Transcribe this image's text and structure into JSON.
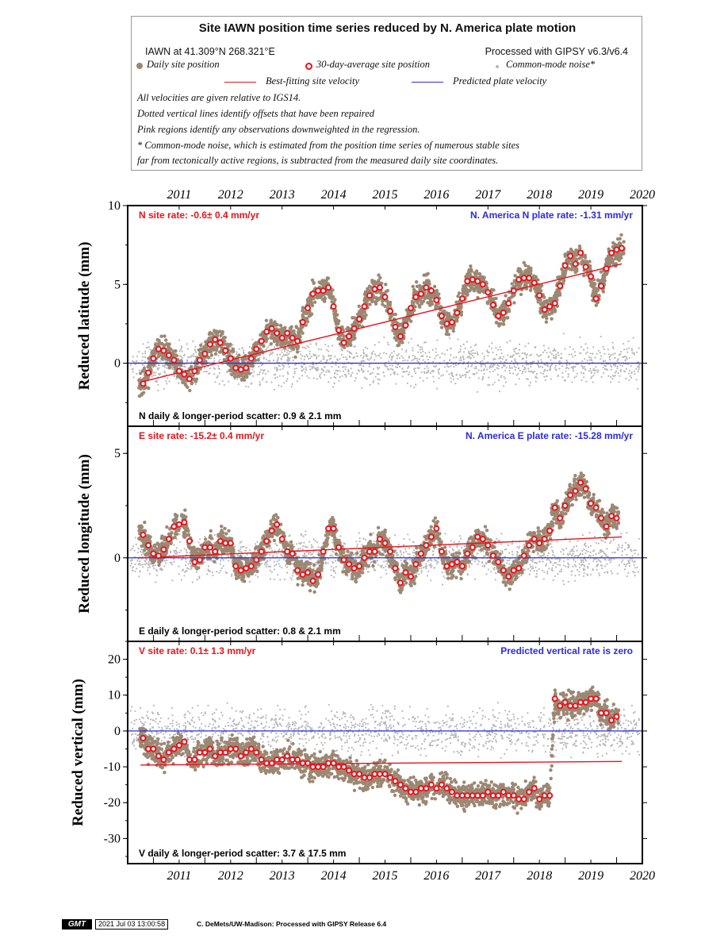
{
  "legend": {
    "title": "Site IAWN position time series reduced by N. America plate motion",
    "location": "IAWN at 41.309°N 268.321°E",
    "processed": "Processed with GIPSY v6.3/v6.4",
    "daily": "Daily site position",
    "avg30": "30-day-average site position",
    "cm_noise": "Common-mode noise*",
    "best_fit": "Best-fitting site velocity",
    "predicted": "Predicted plate velocity",
    "note1": "All velocities are given relative to IGS14.",
    "note2": "Dotted vertical lines identify offsets that have been repaired",
    "note3": "Pink regions identify any observations downweighted in the regression.",
    "note4": "* Common-mode noise, which is estimated from the position time series of numerous stable sites",
    "note5": "far from tectonically active regions, is subtracted from the measured daily site coordinates."
  },
  "colors": {
    "daily": "#9b8873",
    "avg_fill": "#ffffff",
    "avg_stroke": "#e8141c",
    "cm_noise": "#b8b8b8",
    "best_fit": "#e8141c",
    "predicted": "#2a2ae6"
  },
  "chart_data": [
    {
      "type": "scatter",
      "ylabel": "Reduced latitude (mm)",
      "xlim": [
        2010.5,
        2020.5
      ],
      "ylim": [
        -4,
        10
      ],
      "yticks": [
        0,
        5,
        10
      ],
      "x_ticks": [
        "2011",
        "2012",
        "2013",
        "2014",
        "2015",
        "2016",
        "2017",
        "2018",
        "2019",
        "2020"
      ],
      "site_rate_label": "N site rate:  -0.6± 0.4 mm/yr",
      "plate_rate_label": "N. America N plate rate: -1.31 mm/yr",
      "scatter_label": "N daily & longer-period scatter:   0.9 &   2.1 mm",
      "best_fit_line": [
        [
          2010.75,
          -1.2
        ],
        [
          2020.1,
          6.3
        ]
      ],
      "predicted_line": [
        [
          2010.5,
          0
        ],
        [
          2020.5,
          0
        ]
      ],
      "avg_series": [
        [
          2010.8,
          -1.3
        ],
        [
          2010.9,
          -0.6
        ],
        [
          2011.0,
          0.3
        ],
        [
          2011.1,
          0.9
        ],
        [
          2011.2,
          0.8
        ],
        [
          2011.3,
          0.5
        ],
        [
          2011.4,
          0.2
        ],
        [
          2011.5,
          -0.5
        ],
        [
          2011.6,
          -0.7
        ],
        [
          2011.7,
          -1.0
        ],
        [
          2011.8,
          -0.5
        ],
        [
          2011.9,
          0.2
        ],
        [
          2012.0,
          0.6
        ],
        [
          2012.1,
          1.2
        ],
        [
          2012.2,
          1.5
        ],
        [
          2012.3,
          1.3
        ],
        [
          2012.4,
          0.8
        ],
        [
          2012.5,
          0.3
        ],
        [
          2012.6,
          -0.3
        ],
        [
          2012.7,
          -0.4
        ],
        [
          2012.8,
          -0.3
        ],
        [
          2012.9,
          0.3
        ],
        [
          2013.0,
          0.9
        ],
        [
          2013.1,
          1.4
        ],
        [
          2013.2,
          2.0
        ],
        [
          2013.3,
          2.2
        ],
        [
          2013.4,
          1.9
        ],
        [
          2013.5,
          1.6
        ],
        [
          2013.6,
          1.9
        ],
        [
          2013.7,
          1.6
        ],
        [
          2013.8,
          1.4
        ],
        [
          2013.9,
          2.6
        ],
        [
          2014.0,
          3.5
        ],
        [
          2014.1,
          4.4
        ],
        [
          2014.2,
          4.6
        ],
        [
          2014.3,
          4.6
        ],
        [
          2014.4,
          4.8
        ],
        [
          2014.5,
          3.6
        ],
        [
          2014.6,
          2.1
        ],
        [
          2014.7,
          1.3
        ],
        [
          2014.8,
          1.7
        ],
        [
          2014.9,
          2.2
        ],
        [
          2015.0,
          2.8
        ],
        [
          2015.1,
          3.6
        ],
        [
          2015.2,
          4.3
        ],
        [
          2015.3,
          4.7
        ],
        [
          2015.4,
          4.8
        ],
        [
          2015.5,
          4.2
        ],
        [
          2015.6,
          3.3
        ],
        [
          2015.7,
          2.3
        ],
        [
          2015.8,
          1.7
        ],
        [
          2015.9,
          2.4
        ],
        [
          2016.0,
          3.5
        ],
        [
          2016.1,
          4.2
        ],
        [
          2016.2,
          4.4
        ],
        [
          2016.3,
          4.8
        ],
        [
          2016.4,
          4.6
        ],
        [
          2016.5,
          4.0
        ],
        [
          2016.6,
          3.0
        ],
        [
          2016.7,
          2.5
        ],
        [
          2016.8,
          2.6
        ],
        [
          2016.9,
          3.2
        ],
        [
          2017.0,
          4.1
        ],
        [
          2017.1,
          5.2
        ],
        [
          2017.2,
          5.3
        ],
        [
          2017.3,
          5.2
        ],
        [
          2017.4,
          5.0
        ],
        [
          2017.5,
          4.5
        ],
        [
          2017.6,
          3.7
        ],
        [
          2017.7,
          3.0
        ],
        [
          2017.8,
          3.2
        ],
        [
          2017.9,
          3.8
        ],
        [
          2018.0,
          4.6
        ],
        [
          2018.1,
          5.3
        ],
        [
          2018.2,
          5.4
        ],
        [
          2018.3,
          5.4
        ],
        [
          2018.4,
          5.1
        ],
        [
          2018.5,
          4.3
        ],
        [
          2018.6,
          3.4
        ],
        [
          2018.7,
          3.6
        ],
        [
          2018.8,
          3.8
        ],
        [
          2018.9,
          4.9
        ],
        [
          2019.0,
          6.2
        ],
        [
          2019.1,
          6.8
        ],
        [
          2019.2,
          6.3
        ],
        [
          2019.3,
          7.0
        ],
        [
          2019.4,
          6.1
        ],
        [
          2019.5,
          5.5
        ],
        [
          2019.6,
          4.1
        ],
        [
          2019.7,
          4.9
        ],
        [
          2019.8,
          6.0
        ],
        [
          2019.9,
          7.0
        ],
        [
          2020.0,
          7.2
        ],
        [
          2020.1,
          7.3
        ]
      ]
    },
    {
      "type": "scatter",
      "ylabel": "Reduced longitude (mm)",
      "xlim": [
        2010.5,
        2020.5
      ],
      "ylim": [
        -4,
        6.3
      ],
      "yticks": [
        0,
        5
      ],
      "x_ticks": [
        "2011",
        "2012",
        "2013",
        "2014",
        "2015",
        "2016",
        "2017",
        "2018",
        "2019",
        "2020"
      ],
      "site_rate_label": "E site rate:  -15.2± 0.4 mm/yr",
      "plate_rate_label": "N. America E plate rate: -15.28 mm/yr",
      "scatter_label": "E daily & longer-period scatter:   0.8 &   2.1 mm",
      "best_fit_line": [
        [
          2010.75,
          0.0
        ],
        [
          2020.1,
          1.0
        ]
      ],
      "predicted_line": [
        [
          2010.5,
          0
        ],
        [
          2020.5,
          0
        ]
      ],
      "avg_series": [
        [
          2010.8,
          1.1
        ],
        [
          2010.9,
          0.6
        ],
        [
          2011.0,
          0.2
        ],
        [
          2011.1,
          0.1
        ],
        [
          2011.2,
          0.4
        ],
        [
          2011.3,
          0.9
        ],
        [
          2011.4,
          1.5
        ],
        [
          2011.5,
          1.6
        ],
        [
          2011.6,
          1.7
        ],
        [
          2011.7,
          0.8
        ],
        [
          2011.8,
          -0.2
        ],
        [
          2011.9,
          -0.1
        ],
        [
          2012.0,
          0.5
        ],
        [
          2012.1,
          0.5
        ],
        [
          2012.2,
          0.3
        ],
        [
          2012.3,
          0.8
        ],
        [
          2012.4,
          0.7
        ],
        [
          2012.5,
          0.7
        ],
        [
          2012.6,
          -0.4
        ],
        [
          2012.7,
          -0.6
        ],
        [
          2012.8,
          -0.5
        ],
        [
          2012.9,
          -0.4
        ],
        [
          2013.0,
          -0.1
        ],
        [
          2013.1,
          0.3
        ],
        [
          2013.2,
          0.8
        ],
        [
          2013.3,
          1.3
        ],
        [
          2013.4,
          1.6
        ],
        [
          2013.5,
          0.9
        ],
        [
          2013.6,
          0.3
        ],
        [
          2013.7,
          0.2
        ],
        [
          2013.8,
          -0.6
        ],
        [
          2013.9,
          -0.8
        ],
        [
          2014.0,
          -0.7
        ],
        [
          2014.1,
          -1.1
        ],
        [
          2014.2,
          -0.8
        ],
        [
          2014.3,
          0.3
        ],
        [
          2014.4,
          1.4
        ],
        [
          2014.5,
          1.4
        ],
        [
          2014.6,
          0.5
        ],
        [
          2014.7,
          -0.1
        ],
        [
          2014.8,
          -0.3
        ],
        [
          2014.9,
          -0.5
        ],
        [
          2015.0,
          -0.4
        ],
        [
          2015.1,
          0.0
        ],
        [
          2015.2,
          0.3
        ],
        [
          2015.3,
          0.3
        ],
        [
          2015.4,
          0.9
        ],
        [
          2015.5,
          0.7
        ],
        [
          2015.6,
          0.3
        ],
        [
          2015.7,
          -0.5
        ],
        [
          2015.8,
          -1.2
        ],
        [
          2015.9,
          -0.7
        ],
        [
          2016.0,
          -0.9
        ],
        [
          2016.1,
          -0.3
        ],
        [
          2016.2,
          0.2
        ],
        [
          2016.3,
          0.6
        ],
        [
          2016.4,
          1.0
        ],
        [
          2016.5,
          1.4
        ],
        [
          2016.6,
          0.3
        ],
        [
          2016.7,
          -0.4
        ],
        [
          2016.8,
          -0.3
        ],
        [
          2016.9,
          -0.2
        ],
        [
          2017.0,
          -0.4
        ],
        [
          2017.1,
          0.2
        ],
        [
          2017.2,
          0.5
        ],
        [
          2017.3,
          1.0
        ],
        [
          2017.4,
          0.9
        ],
        [
          2017.5,
          0.6
        ],
        [
          2017.6,
          0.1
        ],
        [
          2017.7,
          -0.2
        ],
        [
          2017.8,
          -0.6
        ],
        [
          2017.9,
          -0.9
        ],
        [
          2018.0,
          -0.6
        ],
        [
          2018.1,
          -0.5
        ],
        [
          2018.2,
          0.1
        ],
        [
          2018.3,
          0.6
        ],
        [
          2018.4,
          0.9
        ],
        [
          2018.5,
          0.7
        ],
        [
          2018.6,
          0.9
        ],
        [
          2018.7,
          1.3
        ],
        [
          2018.8,
          2.4
        ],
        [
          2018.9,
          1.9
        ],
        [
          2019.0,
          2.5
        ],
        [
          2019.1,
          3.0
        ],
        [
          2019.2,
          3.2
        ],
        [
          2019.3,
          3.6
        ],
        [
          2019.4,
          3.3
        ],
        [
          2019.5,
          2.6
        ],
        [
          2019.6,
          2.4
        ],
        [
          2019.7,
          1.9
        ],
        [
          2019.8,
          1.5
        ],
        [
          2019.9,
          2.0
        ],
        [
          2020.0,
          1.9
        ]
      ]
    },
    {
      "type": "scatter",
      "ylabel": "Reduced vertical (mm)",
      "xlim": [
        2010.5,
        2020.5
      ],
      "ylim": [
        -37,
        25
      ],
      "yticks": [
        20,
        10,
        0,
        -10,
        -20,
        -30
      ],
      "x_ticks": [
        "2011",
        "2012",
        "2013",
        "2014",
        "2015",
        "2016",
        "2017",
        "2018",
        "2019",
        "2020"
      ],
      "site_rate_label": "V site rate:   0.1± 1.3 mm/yr",
      "plate_rate_label": "Predicted vertical rate is zero",
      "scatter_label": "V daily & longer-period scatter:    3.7 &  17.5 mm",
      "best_fit_line": [
        [
          2010.75,
          -9.5
        ],
        [
          2020.1,
          -8.5
        ]
      ],
      "predicted_line": [
        [
          2010.5,
          0
        ],
        [
          2020.5,
          0
        ]
      ],
      "avg_series": [
        [
          2010.8,
          -2
        ],
        [
          2010.9,
          -5
        ],
        [
          2011.0,
          -5
        ],
        [
          2011.1,
          -7
        ],
        [
          2011.2,
          -8
        ],
        [
          2011.3,
          -6
        ],
        [
          2011.4,
          -5
        ],
        [
          2011.5,
          -4
        ],
        [
          2011.6,
          -3
        ],
        [
          2011.7,
          -8
        ],
        [
          2011.8,
          -8
        ],
        [
          2011.9,
          -6
        ],
        [
          2012.0,
          -6
        ],
        [
          2012.1,
          -5
        ],
        [
          2012.2,
          -7
        ],
        [
          2012.3,
          -6
        ],
        [
          2012.4,
          -6
        ],
        [
          2012.5,
          -5
        ],
        [
          2012.6,
          -5
        ],
        [
          2012.7,
          -7
        ],
        [
          2012.8,
          -6
        ],
        [
          2012.9,
          -5
        ],
        [
          2013.0,
          -6
        ],
        [
          2013.1,
          -8
        ],
        [
          2013.2,
          -9
        ],
        [
          2013.3,
          -9
        ],
        [
          2013.4,
          -8
        ],
        [
          2013.5,
          -8
        ],
        [
          2013.6,
          -7
        ],
        [
          2013.7,
          -8
        ],
        [
          2013.8,
          -8
        ],
        [
          2013.9,
          -9
        ],
        [
          2014.0,
          -9
        ],
        [
          2014.1,
          -10
        ],
        [
          2014.2,
          -10
        ],
        [
          2014.3,
          -10
        ],
        [
          2014.4,
          -9
        ],
        [
          2014.5,
          -9
        ],
        [
          2014.6,
          -10
        ],
        [
          2014.7,
          -10
        ],
        [
          2014.8,
          -11
        ],
        [
          2014.9,
          -12
        ],
        [
          2015.0,
          -12
        ],
        [
          2015.1,
          -13
        ],
        [
          2015.2,
          -13
        ],
        [
          2015.3,
          -12
        ],
        [
          2015.4,
          -12
        ],
        [
          2015.5,
          -12
        ],
        [
          2015.6,
          -13
        ],
        [
          2015.7,
          -14
        ],
        [
          2015.8,
          -15
        ],
        [
          2015.9,
          -16
        ],
        [
          2016.0,
          -17
        ],
        [
          2016.1,
          -17
        ],
        [
          2016.2,
          -16
        ],
        [
          2016.3,
          -16
        ],
        [
          2016.4,
          -15
        ],
        [
          2016.5,
          -16
        ],
        [
          2016.6,
          -15
        ],
        [
          2016.7,
          -16
        ],
        [
          2016.8,
          -17
        ],
        [
          2016.9,
          -18
        ],
        [
          2017.0,
          -18
        ],
        [
          2017.1,
          -18
        ],
        [
          2017.2,
          -18
        ],
        [
          2017.3,
          -18
        ],
        [
          2017.4,
          -18
        ],
        [
          2017.5,
          -17
        ],
        [
          2017.6,
          -18
        ],
        [
          2017.7,
          -18
        ],
        [
          2017.8,
          -17
        ],
        [
          2017.9,
          -18
        ],
        [
          2018.0,
          -18
        ],
        [
          2018.1,
          -19
        ],
        [
          2018.2,
          -19
        ],
        [
          2018.3,
          -17
        ],
        [
          2018.4,
          -16
        ],
        [
          2018.5,
          -19
        ],
        [
          2018.6,
          -18
        ],
        [
          2018.7,
          -18
        ],
        [
          2018.8,
          9
        ],
        [
          2018.9,
          7
        ],
        [
          2019.0,
          8
        ],
        [
          2019.1,
          7
        ],
        [
          2019.2,
          7
        ],
        [
          2019.3,
          8
        ],
        [
          2019.4,
          8
        ],
        [
          2019.5,
          9
        ],
        [
          2019.6,
          9
        ],
        [
          2019.7,
          5
        ],
        [
          2019.8,
          5
        ],
        [
          2019.9,
          3
        ],
        [
          2020.0,
          4
        ]
      ]
    }
  ],
  "footer": {
    "logo": "GMT",
    "stamp": "2021 Jul 03 13:00:58",
    "credit": "C. DeMets/UW-Madison: Processed with GIPSY Release 6.4"
  }
}
